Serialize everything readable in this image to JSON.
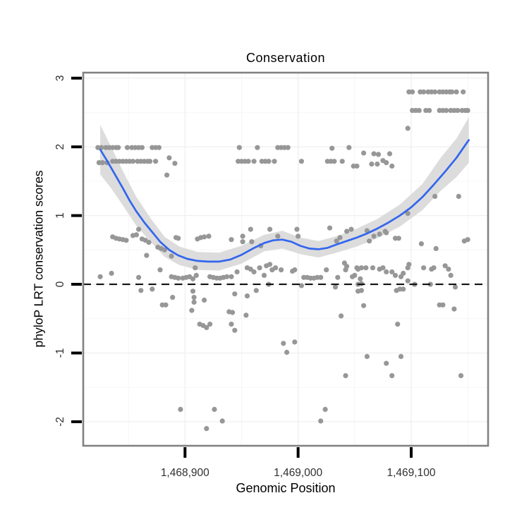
{
  "title": "Conservation",
  "axes": {
    "x_label": "Genomic Position",
    "y_label": "phyloP LRT conservation scores",
    "x_ticks": [
      {
        "value": 1468900,
        "label": "1,468,900"
      },
      {
        "value": 1469000,
        "label": "1,469,000"
      },
      {
        "value": 1469100,
        "label": "1,469,100"
      }
    ],
    "y_ticks": [
      {
        "value": 3,
        "label": "3"
      },
      {
        "value": 2,
        "label": "2"
      },
      {
        "value": 1,
        "label": "1"
      },
      {
        "value": 0,
        "label": "0"
      },
      {
        "value": -1,
        "label": "-1"
      },
      {
        "value": -2,
        "label": "-2"
      }
    ],
    "x_minor": [
      1468850,
      1468950,
      1469050,
      1469150
    ],
    "y_minor": [
      2.5,
      1.5,
      0.5,
      -0.5,
      -1.5
    ]
  },
  "chart_data": {
    "type": "scatter",
    "title": "Conservation",
    "xlabel": "Genomic Position",
    "ylabel": "phyloP LRT conservation scores",
    "xlim": [
      1468810,
      1469168
    ],
    "ylim": [
      -2.35,
      3.08
    ],
    "hline": 0,
    "colors": {
      "point": "#979797",
      "smooth_line": "#3366ee",
      "band": "#d8d8d8",
      "grid_major": "#efefef",
      "grid_minor": "#f7f7f7",
      "panel_border": "#828282",
      "zero_line": "#111111",
      "tick": "#000000",
      "tick_label": "#303030"
    },
    "points": [
      [
        1468823,
        1.99
      ],
      [
        1468826,
        1.99
      ],
      [
        1468830,
        1.99
      ],
      [
        1468833,
        1.99
      ],
      [
        1468836,
        1.99
      ],
      [
        1468839,
        1.99
      ],
      [
        1468841,
        1.99
      ],
      [
        1468849,
        1.99
      ],
      [
        1468853,
        1.99
      ],
      [
        1468856,
        1.99
      ],
      [
        1468859,
        1.99
      ],
      [
        1468862,
        1.99
      ],
      [
        1468871,
        1.99
      ],
      [
        1468874,
        1.99
      ],
      [
        1468877,
        1.99
      ],
      [
        1468948,
        1.99
      ],
      [
        1468964,
        1.99
      ],
      [
        1468982,
        1.99
      ],
      [
        1468985,
        1.99
      ],
      [
        1468988,
        1.99
      ],
      [
        1468991,
        1.99
      ],
      [
        1469030,
        1.98
      ],
      [
        1469045,
        1.99
      ],
      [
        1468824,
        1.77
      ],
      [
        1468827,
        1.77
      ],
      [
        1468831,
        1.77
      ],
      [
        1468836,
        1.79
      ],
      [
        1468839,
        1.79
      ],
      [
        1468842,
        1.79
      ],
      [
        1468845,
        1.79
      ],
      [
        1468848,
        1.79
      ],
      [
        1468851,
        1.79
      ],
      [
        1468854,
        1.79
      ],
      [
        1468858,
        1.79
      ],
      [
        1468861,
        1.79
      ],
      [
        1468864,
        1.79
      ],
      [
        1468867,
        1.79
      ],
      [
        1468869,
        1.79
      ],
      [
        1468874,
        1.79
      ],
      [
        1468884,
        1.59
      ],
      [
        1468886,
        1.84
      ],
      [
        1468891,
        1.76
      ],
      [
        1468947,
        1.79
      ],
      [
        1468950,
        1.79
      ],
      [
        1468953,
        1.79
      ],
      [
        1468956,
        1.79
      ],
      [
        1468961,
        1.79
      ],
      [
        1468968,
        1.79
      ],
      [
        1468971,
        1.79
      ],
      [
        1468974,
        1.79
      ],
      [
        1468979,
        1.79
      ],
      [
        1469003,
        1.79
      ],
      [
        1469026,
        1.79
      ],
      [
        1469029,
        1.79
      ],
      [
        1469032,
        1.79
      ],
      [
        1469039,
        1.79
      ],
      [
        1469049,
        1.72
      ],
      [
        1469052,
        1.72
      ],
      [
        1469065,
        1.75
      ],
      [
        1469070,
        1.75
      ],
      [
        1469075,
        1.8
      ],
      [
        1469078,
        1.77
      ],
      [
        1469083,
        1.72
      ],
      [
        1469058,
        1.91
      ],
      [
        1469067,
        1.9
      ],
      [
        1469071,
        1.89
      ],
      [
        1469081,
        1.9
      ],
      [
        1469098,
        2.8
      ],
      [
        1469101,
        2.8
      ],
      [
        1469108,
        2.8
      ],
      [
        1469111,
        2.8
      ],
      [
        1469115,
        2.8
      ],
      [
        1469118,
        2.8
      ],
      [
        1469121,
        2.8
      ],
      [
        1469125,
        2.8
      ],
      [
        1469128,
        2.8
      ],
      [
        1469131,
        2.8
      ],
      [
        1469134,
        2.8
      ],
      [
        1469136,
        2.8
      ],
      [
        1469140,
        2.8
      ],
      [
        1469146,
        2.8
      ],
      [
        1469101,
        2.53
      ],
      [
        1469104,
        2.53
      ],
      [
        1469107,
        2.53
      ],
      [
        1469113,
        2.53
      ],
      [
        1469116,
        2.53
      ],
      [
        1469125,
        2.53
      ],
      [
        1469128,
        2.53
      ],
      [
        1469131,
        2.53
      ],
      [
        1469135,
        2.53
      ],
      [
        1469138,
        2.53
      ],
      [
        1469141,
        2.53
      ],
      [
        1469145,
        2.53
      ],
      [
        1469148,
        2.53
      ],
      [
        1469150,
        2.53
      ],
      [
        1469097,
        2.27
      ],
      [
        1468836,
        0.69
      ],
      [
        1468839,
        0.67
      ],
      [
        1468842,
        0.66
      ],
      [
        1468845,
        0.65
      ],
      [
        1468848,
        0.64
      ],
      [
        1468854,
        0.71
      ],
      [
        1468857,
        0.72
      ],
      [
        1468859,
        0.8
      ],
      [
        1468862,
        0.66
      ],
      [
        1468865,
        0.64
      ],
      [
        1468868,
        0.61
      ],
      [
        1468876,
        0.54
      ],
      [
        1468879,
        0.52
      ],
      [
        1468882,
        0.5
      ],
      [
        1468892,
        0.68
      ],
      [
        1468894,
        0.67
      ],
      [
        1468911,
        0.66
      ],
      [
        1468914,
        0.68
      ],
      [
        1468917,
        0.69
      ],
      [
        1468921,
        0.7
      ],
      [
        1468866,
        0.42
      ],
      [
        1468888,
        0.41
      ],
      [
        1468941,
        0.65
      ],
      [
        1468951,
        0.7
      ],
      [
        1468951,
        0.62
      ],
      [
        1468958,
        0.8
      ],
      [
        1468959,
        0.62
      ],
      [
        1468967,
        0.56
      ],
      [
        1468975,
        0.8
      ],
      [
        1468982,
        0.7
      ],
      [
        1468999,
        0.8
      ],
      [
        1469000,
        0.7
      ],
      [
        1469028,
        0.82
      ],
      [
        1469034,
        0.63
      ],
      [
        1469037,
        0.68
      ],
      [
        1469043,
        0.77
      ],
      [
        1469047,
        0.8
      ],
      [
        1469061,
        0.78
      ],
      [
        1469063,
        0.63
      ],
      [
        1469067,
        0.7
      ],
      [
        1469072,
        0.73
      ],
      [
        1469077,
        0.77
      ],
      [
        1469078,
        0.75
      ],
      [
        1469086,
        0.67
      ],
      [
        1469089,
        0.67
      ],
      [
        1469109,
        0.59
      ],
      [
        1469122,
        0.52
      ],
      [
        1469147,
        0.63
      ],
      [
        1469150,
        0.65
      ],
      [
        1469097,
        1.03
      ],
      [
        1469121,
        1.28
      ],
      [
        1469142,
        1.28
      ],
      [
        1468825,
        0.11
      ],
      [
        1468835,
        0.16
      ],
      [
        1468859,
        0.1
      ],
      [
        1468878,
        0.21
      ],
      [
        1468888,
        0.11
      ],
      [
        1468891,
        0.1
      ],
      [
        1468894,
        0.09
      ],
      [
        1468898,
        0.09
      ],
      [
        1468901,
        0.1
      ],
      [
        1468904,
        0.11
      ],
      [
        1468907,
        0.08
      ],
      [
        1468909,
        0.24
      ],
      [
        1468910,
        0.13
      ],
      [
        1468922,
        0.11
      ],
      [
        1468925,
        0.1
      ],
      [
        1468928,
        0.09
      ],
      [
        1468931,
        0.09
      ],
      [
        1468934,
        0.1
      ],
      [
        1468937,
        0.11
      ],
      [
        1468941,
        0.11
      ],
      [
        1468946,
        0.18
      ],
      [
        1468955,
        0.24
      ],
      [
        1468958,
        0.22
      ],
      [
        1468961,
        0.18
      ],
      [
        1468966,
        0.24
      ],
      [
        1468970,
        0.13
      ],
      [
        1468972,
        0.27
      ],
      [
        1468975,
        0.29
      ],
      [
        1468977,
        0.21
      ],
      [
        1468980,
        0.24
      ],
      [
        1468985,
        0.21
      ],
      [
        1468995,
        0.19
      ],
      [
        1468997,
        0.21
      ],
      [
        1469005,
        0.1
      ],
      [
        1469008,
        0.1
      ],
      [
        1469011,
        0.09
      ],
      [
        1469014,
        0.09
      ],
      [
        1469017,
        0.1
      ],
      [
        1469020,
        0.1
      ],
      [
        1469025,
        0.21
      ],
      [
        1469035,
        0.1
      ],
      [
        1469041,
        0.31
      ],
      [
        1469042,
        0.21
      ],
      [
        1469043,
        0.26
      ],
      [
        1469048,
        0.11
      ],
      [
        1469050,
        0.13
      ],
      [
        1469052,
        0.24
      ],
      [
        1469055,
        0.08
      ],
      [
        1469053,
        0.22
      ],
      [
        1469056,
        0.24
      ],
      [
        1469060,
        0.24
      ],
      [
        1469066,
        0.24
      ],
      [
        1469072,
        0.22
      ],
      [
        1469075,
        0.24
      ],
      [
        1469078,
        0.18
      ],
      [
        1469083,
        0.18
      ],
      [
        1469086,
        0.13
      ],
      [
        1469091,
        0.11
      ],
      [
        1469093,
        0.16
      ],
      [
        1469097,
        0.24
      ],
      [
        1469098,
        0.29
      ],
      [
        1469111,
        0.24
      ],
      [
        1469118,
        0.22
      ],
      [
        1469120,
        0.24
      ],
      [
        1469130,
        0.27
      ],
      [
        1469133,
        0.22
      ],
      [
        1469135,
        0.13
      ],
      [
        1469097,
        0.05
      ],
      [
        1469103,
        0.0
      ],
      [
        1469117,
        0.0
      ],
      [
        1469139,
        -0.04
      ],
      [
        1469003,
        -0.02
      ],
      [
        1469033,
        -0.04
      ],
      [
        1469056,
        0.01
      ],
      [
        1468974,
        0.0
      ],
      [
        1468861,
        -0.09
      ],
      [
        1468871,
        -0.07
      ],
      [
        1469053,
        0.0
      ],
      [
        1469053,
        -0.1
      ],
      [
        1469056,
        -0.09
      ],
      [
        1469087,
        -0.09
      ],
      [
        1469090,
        -0.07
      ],
      [
        1469093,
        -0.07
      ],
      [
        1468944,
        -0.14
      ],
      [
        1468963,
        -0.09
      ],
      [
        1468955,
        -0.17
      ],
      [
        1468889,
        -0.19
      ],
      [
        1468907,
        -0.1
      ],
      [
        1468908,
        -0.19
      ],
      [
        1468880,
        -0.3
      ],
      [
        1468883,
        -0.3
      ],
      [
        1468908,
        -0.26
      ],
      [
        1468906,
        -0.38
      ],
      [
        1468917,
        -0.23
      ],
      [
        1468913,
        -0.58
      ],
      [
        1468916,
        -0.6
      ],
      [
        1468919,
        -0.63
      ],
      [
        1468922,
        -0.58
      ],
      [
        1468939,
        -0.4
      ],
      [
        1468942,
        -0.41
      ],
      [
        1468954,
        -0.45
      ],
      [
        1468941,
        -0.58
      ],
      [
        1468944,
        -0.67
      ],
      [
        1469038,
        -0.46
      ],
      [
        1469058,
        -0.31
      ],
      [
        1469088,
        -0.58
      ],
      [
        1469125,
        -0.3
      ],
      [
        1469128,
        -0.3
      ],
      [
        1469138,
        -0.36
      ],
      [
        1468987,
        -0.86
      ],
      [
        1468997,
        -0.84
      ],
      [
        1468990,
        -0.99
      ],
      [
        1469042,
        -1.33
      ],
      [
        1469061,
        -1.05
      ],
      [
        1469078,
        -1.15
      ],
      [
        1469091,
        -1.05
      ],
      [
        1469083,
        -1.33
      ],
      [
        1469144,
        -1.33
      ],
      [
        1468896,
        -1.82
      ],
      [
        1468926,
        -1.82
      ],
      [
        1468919,
        -2.1
      ],
      [
        1468933,
        -1.99
      ],
      [
        1469024,
        -1.82
      ],
      [
        1469020,
        -1.99
      ]
    ],
    "smooth": [
      [
        1468825,
        1.96
      ],
      [
        1468831,
        1.8
      ],
      [
        1468838,
        1.6
      ],
      [
        1468845,
        1.4
      ],
      [
        1468851,
        1.22
      ],
      [
        1468857,
        1.06
      ],
      [
        1468864,
        0.9
      ],
      [
        1468871,
        0.76
      ],
      [
        1468878,
        0.62
      ],
      [
        1468886,
        0.5
      ],
      [
        1468894,
        0.42
      ],
      [
        1468902,
        0.37
      ],
      [
        1468911,
        0.34
      ],
      [
        1468920,
        0.33
      ],
      [
        1468930,
        0.33
      ],
      [
        1468940,
        0.36
      ],
      [
        1468950,
        0.43
      ],
      [
        1468960,
        0.52
      ],
      [
        1468970,
        0.6
      ],
      [
        1468978,
        0.64
      ],
      [
        1468986,
        0.65
      ],
      [
        1468994,
        0.62
      ],
      [
        1469002,
        0.56
      ],
      [
        1469010,
        0.52
      ],
      [
        1469018,
        0.51
      ],
      [
        1469026,
        0.53
      ],
      [
        1469034,
        0.58
      ],
      [
        1469043,
        0.63
      ],
      [
        1469052,
        0.68
      ],
      [
        1469061,
        0.74
      ],
      [
        1469070,
        0.81
      ],
      [
        1469080,
        0.9
      ],
      [
        1469090,
        1.0
      ],
      [
        1469100,
        1.12
      ],
      [
        1469110,
        1.27
      ],
      [
        1469120,
        1.45
      ],
      [
        1469130,
        1.64
      ],
      [
        1469140,
        1.84
      ],
      [
        1469148,
        2.03
      ],
      [
        1469151,
        2.1
      ]
    ],
    "band": [
      [
        1468825,
        1.6,
        2.32
      ],
      [
        1468835,
        1.39,
        1.99
      ],
      [
        1468845,
        1.15,
        1.65
      ],
      [
        1468857,
        0.85,
        1.27
      ],
      [
        1468870,
        0.61,
        0.95
      ],
      [
        1468882,
        0.4,
        0.69
      ],
      [
        1468895,
        0.28,
        0.55
      ],
      [
        1468911,
        0.21,
        0.47
      ],
      [
        1468930,
        0.2,
        0.46
      ],
      [
        1468950,
        0.3,
        0.56
      ],
      [
        1468970,
        0.48,
        0.72
      ],
      [
        1468986,
        0.52,
        0.78
      ],
      [
        1469002,
        0.44,
        0.68
      ],
      [
        1469018,
        0.39,
        0.63
      ],
      [
        1469034,
        0.46,
        0.7
      ],
      [
        1469052,
        0.55,
        0.81
      ],
      [
        1469070,
        0.67,
        0.95
      ],
      [
        1469090,
        0.84,
        1.16
      ],
      [
        1469110,
        1.08,
        1.46
      ],
      [
        1469126,
        1.36,
        1.84
      ],
      [
        1469140,
        1.56,
        2.12
      ],
      [
        1469151,
        1.77,
        2.43
      ]
    ]
  }
}
